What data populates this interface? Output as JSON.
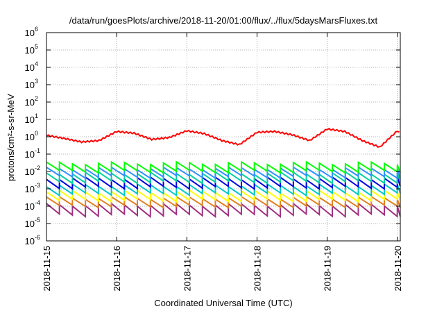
{
  "chart_data": {
    "type": "line",
    "title": "/data/run/goesPlots/archive/2018-11-20/01:00/flux/../flux/5daysMarsFluxes.txt",
    "xlabel": "Coordinated Universal Time (UTC)",
    "ylabel": "protons/cm²-s-sr-MeV",
    "y_scale": "log",
    "ylim": [
      1e-06,
      1000000.0
    ],
    "y_ticks": [
      {
        "base": "10",
        "exp": "6"
      },
      {
        "base": "10",
        "exp": "5"
      },
      {
        "base": "10",
        "exp": "4"
      },
      {
        "base": "10",
        "exp": "3"
      },
      {
        "base": "10",
        "exp": "2"
      },
      {
        "base": "10",
        "exp": "1"
      },
      {
        "base": "10",
        "exp": "0"
      },
      {
        "base": "10",
        "exp": "-1"
      },
      {
        "base": "10",
        "exp": "-2"
      },
      {
        "base": "10",
        "exp": "-3"
      },
      {
        "base": "10",
        "exp": "-4"
      },
      {
        "base": "10",
        "exp": "-5"
      },
      {
        "base": "10",
        "exp": "-6"
      }
    ],
    "xlim": [
      "2018-11-15",
      "2018-11-20T01:00"
    ],
    "x_ticks": [
      "2018-11-15",
      "2018-11-16",
      "2018-11-17",
      "2018-11-18",
      "2018-11-19",
      "2018-11-20"
    ],
    "grid": true,
    "series": [
      {
        "color": "#ff0000",
        "x": [
          "2018-11-15T00:00",
          "2018-11-15T06:00",
          "2018-11-15T12:00",
          "2018-11-15T18:00",
          "2018-11-16T00:00",
          "2018-11-16T06:00",
          "2018-11-16T12:00",
          "2018-11-16T18:00",
          "2018-11-17T00:00",
          "2018-11-17T06:00",
          "2018-11-17T12:00",
          "2018-11-17T18:00",
          "2018-11-18T00:00",
          "2018-11-18T06:00",
          "2018-11-18T12:00",
          "2018-11-18T18:00",
          "2018-11-19T00:00",
          "2018-11-19T06:00",
          "2018-11-19T12:00",
          "2018-11-19T18:00",
          "2018-11-20T00:00",
          "2018-11-20T01:00"
        ],
        "values": [
          1.2,
          0.8,
          0.5,
          0.6,
          2.0,
          1.6,
          0.7,
          0.9,
          2.2,
          1.5,
          0.6,
          0.35,
          1.8,
          2.0,
          1.3,
          0.6,
          2.8,
          2.0,
          0.6,
          0.25,
          2.2,
          1.5
        ]
      },
      {
        "color": "#00ff00",
        "values": [
          0.03,
          0.01
        ]
      },
      {
        "color": "#3090ff",
        "values": [
          0.015,
          0.005
        ]
      },
      {
        "color": "#00d0a0",
        "values": [
          0.008,
          0.0025
        ]
      },
      {
        "color": "#0000e0",
        "values": [
          0.004,
          0.0012
        ]
      },
      {
        "color": "#00c8c8",
        "values": [
          0.0016,
          0.0005
        ]
      },
      {
        "color": "#ffff00",
        "values": [
          0.0007,
          0.00022
        ]
      },
      {
        "color": "#e08020",
        "values": [
          0.0003,
          0.0001
        ]
      },
      {
        "color": "#a03080",
        "values": [
          0.00012,
          3e-05
        ]
      }
    ]
  }
}
